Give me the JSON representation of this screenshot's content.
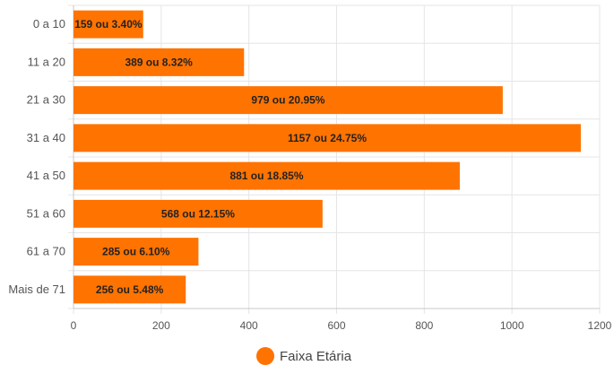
{
  "chart_data": {
    "type": "bar",
    "orientation": "horizontal",
    "categories": [
      "0 a 10",
      "11 a 20",
      "21 a 30",
      "31 a 40",
      "41 a 50",
      "51 a 60",
      "61 a 70",
      "Mais de 71"
    ],
    "series": [
      {
        "name": "Faixa Etária",
        "values": [
          159,
          389,
          979,
          1157,
          881,
          568,
          285,
          256
        ],
        "labels": [
          "159 ou 3.40%",
          "389 ou 8.32%",
          "979 ou 20.95%",
          "1157 ou 24.75%",
          "881 ou 18.85%",
          "568 ou 12.15%",
          "285 ou 6.10%",
          "256 ou 5.48%"
        ],
        "color": "#ff7300"
      }
    ],
    "xlim": [
      0,
      1200
    ],
    "xticks": [
      "0",
      "200",
      "400",
      "600",
      "800",
      "1000",
      "1200"
    ],
    "grid": true,
    "legend": "bottom-center"
  },
  "colors": {
    "bar": "#ff7300",
    "grid": "#e5e5e5",
    "axis": "#c8c8c8"
  }
}
